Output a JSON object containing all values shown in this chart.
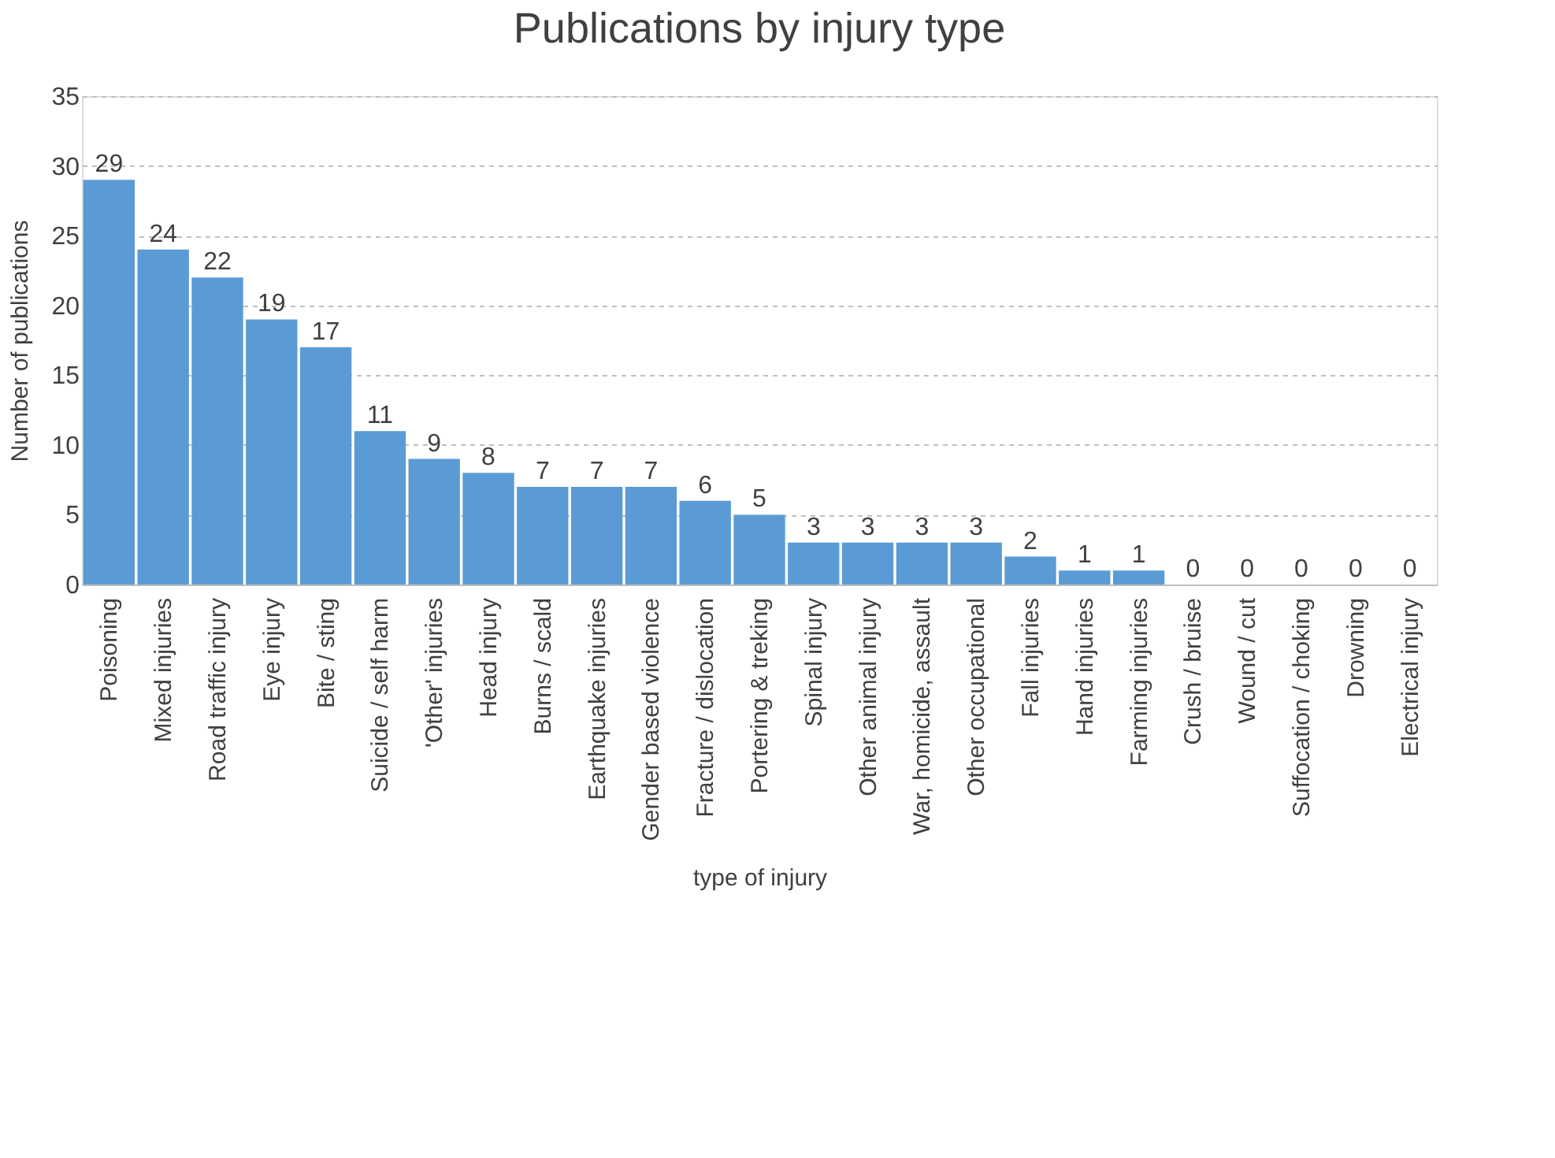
{
  "chart_data": {
    "type": "bar",
    "title": "Publications by injury type",
    "xlabel": "type of injury",
    "ylabel": "Number of publications",
    "categories": [
      "Poisoning",
      "Mixed injuries",
      "Road traffic injury",
      "Eye injury",
      "Bite / sting",
      "Suicide / self harm",
      "'Other' injuries",
      "Head injury",
      "Burns / scald",
      "Earthquake injuries",
      "Gender based violence",
      "Fracture / dislocation",
      "Portering & treking",
      "Spinal injury",
      "Other animal injury",
      "War, homicide, assault",
      "Other occupational",
      "Fall injuries",
      "Hand injuries",
      "Farming injuries",
      "Crush / bruise",
      "Wound / cut",
      "Suffocation / choking",
      "Drowning",
      "Electrical injury"
    ],
    "values": [
      29,
      24,
      22,
      19,
      17,
      11,
      9,
      8,
      7,
      7,
      7,
      6,
      5,
      3,
      3,
      3,
      3,
      2,
      1,
      1,
      0,
      0,
      0,
      0,
      0
    ],
    "color": "#5b9bd5",
    "ylim": [
      0,
      35
    ],
    "yticks": [
      0,
      5,
      10,
      15,
      20,
      25,
      30,
      35
    ],
    "grid": "y",
    "data_labels": true
  }
}
